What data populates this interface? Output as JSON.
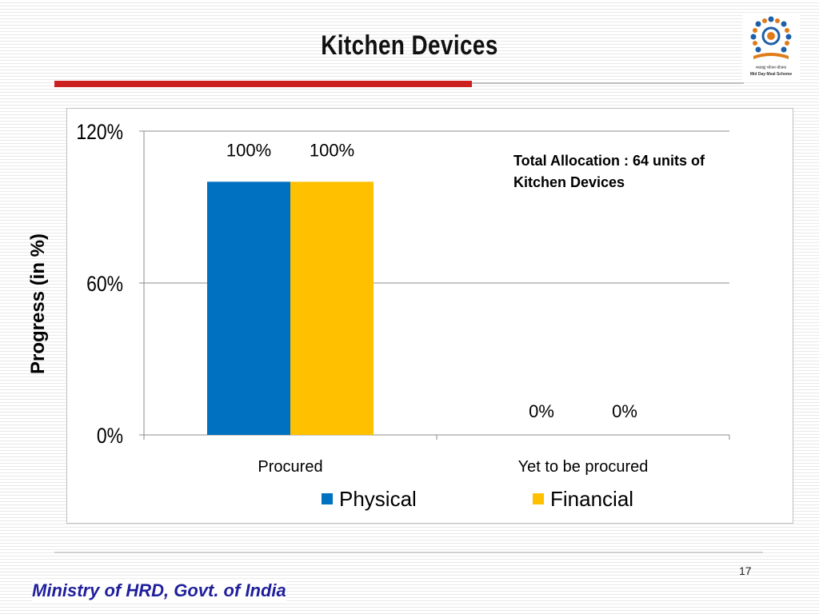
{
  "slide": {
    "title": "Kitchen Devices",
    "note": "Total Allocation : 64 units of\nKitchen Devices",
    "page_number": "17",
    "footer": "Ministry of HRD, Govt. of India",
    "logo_text": "मध्याह्न भोजन योजना",
    "logo_subtext": "Mid Day Meal Scheme"
  },
  "chart_data": {
    "type": "bar",
    "categories": [
      "Procured",
      "Yet to be procured"
    ],
    "series": [
      {
        "name": "Physical",
        "values": [
          100,
          0
        ],
        "labels": [
          "100%",
          "0%"
        ],
        "color": "#0070c0"
      },
      {
        "name": "Financial",
        "values": [
          100,
          0
        ],
        "labels": [
          "100%",
          "0%"
        ],
        "color": "#ffc000"
      }
    ],
    "ylabel": "Progress (in %)",
    "xlabel": "",
    "ylim": [
      0,
      120
    ],
    "yticks": [
      0,
      60,
      120
    ],
    "ytick_labels": [
      "0%",
      "60%",
      "120%"
    ],
    "grid": true,
    "legend": "bottom"
  }
}
